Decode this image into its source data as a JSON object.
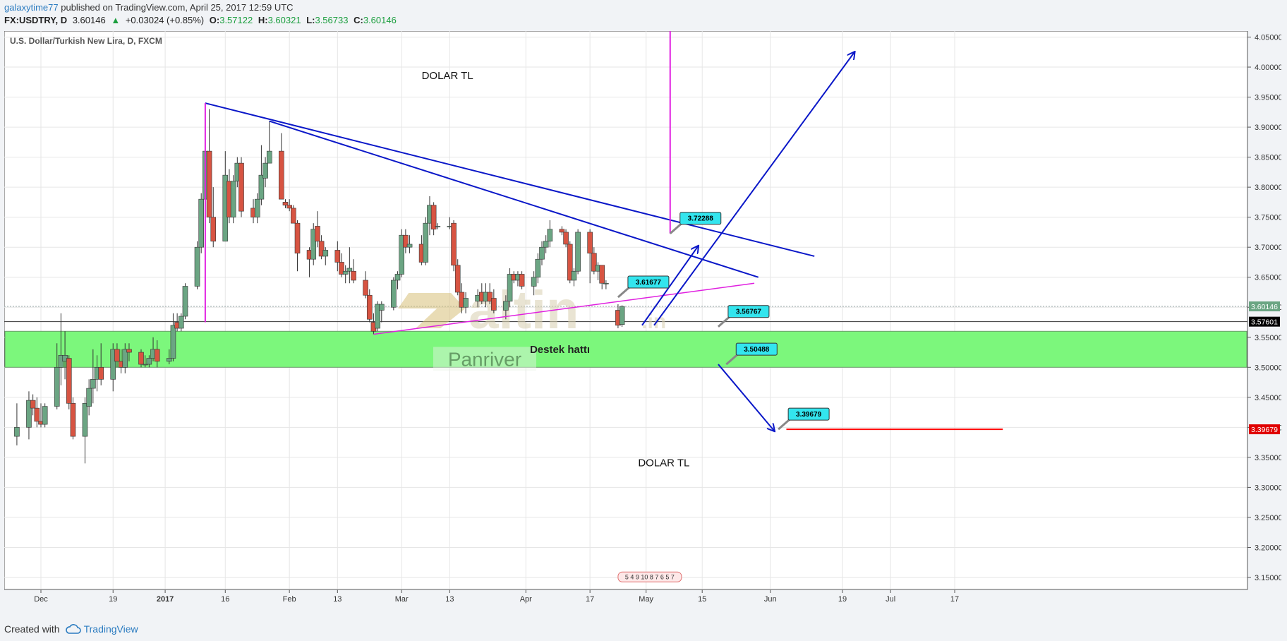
{
  "header": {
    "author": "galaxytime77",
    "published_text": "published on TradingView.com, April 25, 2017 12:59 UTC",
    "symbol": "FX:USDTRY, D",
    "last": "3.60146",
    "change_arrow": "▲",
    "change": "+0.03024 (+0.85%)",
    "open_label": "O:",
    "open": "3.57122",
    "high_label": "H:",
    "high": "3.60321",
    "low_label": "L:",
    "low": "3.56733",
    "close_label": "C:",
    "close": "3.60146"
  },
  "footer": {
    "created_with": "Created with",
    "brand": "TradingView"
  },
  "chart_data": {
    "type": "candlestick",
    "title": "U.S. Dollar/Turkish New Lira, D, FXCM",
    "ylim": [
      3.13,
      4.06
    ],
    "y_ticks": [
      "4.05000",
      "4.00000",
      "3.95000",
      "3.90000",
      "3.85000",
      "3.80000",
      "3.75000",
      "3.70000",
      "3.65000",
      "3.60000",
      "3.55000",
      "3.50000",
      "3.45000",
      "3.40000",
      "3.35000",
      "3.30000",
      "3.25000",
      "3.20000",
      "3.15000"
    ],
    "x_ticks": [
      {
        "label": "Dec",
        "date": "2016-12-01",
        "bold": false
      },
      {
        "label": "19",
        "date": "2016-12-19",
        "bold": false
      },
      {
        "label": "2017",
        "date": "2017-01-01",
        "bold": true
      },
      {
        "label": "16",
        "date": "2017-01-16",
        "bold": false
      },
      {
        "label": "Feb",
        "date": "2017-02-01",
        "bold": false
      },
      {
        "label": "13",
        "date": "2017-02-13",
        "bold": false
      },
      {
        "label": "Mar",
        "date": "2017-03-01",
        "bold": false
      },
      {
        "label": "13",
        "date": "2017-03-13",
        "bold": false
      },
      {
        "label": "Apr",
        "date": "2017-04-01",
        "bold": false
      },
      {
        "label": "17",
        "date": "2017-04-17",
        "bold": false
      },
      {
        "label": "May",
        "date": "2017-05-01",
        "bold": false
      },
      {
        "label": "15",
        "date": "2017-05-15",
        "bold": false
      },
      {
        "label": "Jun",
        "date": "2017-06-01",
        "bold": false
      },
      {
        "label": "19",
        "date": "2017-06-19",
        "bold": false
      },
      {
        "label": "Jul",
        "date": "2017-07-01",
        "bold": false
      },
      {
        "label": "17",
        "date": "2017-07-17",
        "bold": false
      }
    ],
    "price_labels": [
      {
        "value": 3.60146,
        "text": "3.60146",
        "color": "#6ba583"
      },
      {
        "value": 3.57601,
        "text": "3.57601",
        "color": "#000000"
      },
      {
        "value": 3.39679,
        "text": "3.39679",
        "color": "#e00000"
      }
    ],
    "colors": {
      "up": "#6ba583",
      "down": "#d75442",
      "zone": "#7cf77c",
      "trend": "#0a17c8",
      "magenta": "#e020e0",
      "red_line": "#ff0000",
      "callout": "#33e5ee"
    },
    "candles": [
      {
        "d": "2016-11-25",
        "o": 3.385,
        "h": 3.44,
        "l": 3.37,
        "c": 3.4
      },
      {
        "d": "2016-11-28",
        "o": 3.4,
        "h": 3.46,
        "l": 3.38,
        "c": 3.445
      },
      {
        "d": "2016-11-29",
        "o": 3.445,
        "h": 3.455,
        "l": 3.42,
        "c": 3.432
      },
      {
        "d": "2016-11-30",
        "o": 3.432,
        "h": 3.45,
        "l": 3.4,
        "c": 3.41
      },
      {
        "d": "2016-12-01",
        "o": 3.41,
        "h": 3.44,
        "l": 3.4,
        "c": 3.405
      },
      {
        "d": "2016-12-02",
        "o": 3.405,
        "h": 3.44,
        "l": 3.4,
        "c": 3.435
      },
      {
        "d": "2016-12-05",
        "o": 3.435,
        "h": 3.54,
        "l": 3.43,
        "c": 3.5
      },
      {
        "d": "2016-12-06",
        "o": 3.5,
        "h": 3.59,
        "l": 3.47,
        "c": 3.52
      },
      {
        "d": "2016-12-07",
        "o": 3.51,
        "h": 3.56,
        "l": 3.48,
        "c": 3.52
      },
      {
        "d": "2016-12-08",
        "o": 3.515,
        "h": 3.52,
        "l": 3.43,
        "c": 3.44
      },
      {
        "d": "2016-12-09",
        "o": 3.44,
        "h": 3.45,
        "l": 3.38,
        "c": 3.385
      },
      {
        "d": "2016-12-12",
        "o": 3.385,
        "h": 3.45,
        "l": 3.34,
        "c": 3.44
      },
      {
        "d": "2016-12-13",
        "o": 3.435,
        "h": 3.48,
        "l": 3.42,
        "c": 3.465
      },
      {
        "d": "2016-12-14",
        "o": 3.465,
        "h": 3.53,
        "l": 3.44,
        "c": 3.48
      },
      {
        "d": "2016-12-15",
        "o": 3.48,
        "h": 3.52,
        "l": 3.46,
        "c": 3.5
      },
      {
        "d": "2016-12-16",
        "o": 3.5,
        "h": 3.54,
        "l": 3.47,
        "c": 3.48
      },
      {
        "d": "2016-12-19",
        "o": 3.48,
        "h": 3.54,
        "l": 3.46,
        "c": 3.53
      },
      {
        "d": "2016-12-20",
        "o": 3.53,
        "h": 3.54,
        "l": 3.5,
        "c": 3.51
      },
      {
        "d": "2016-12-21",
        "o": 3.51,
        "h": 3.53,
        "l": 3.49,
        "c": 3.5
      },
      {
        "d": "2016-12-22",
        "o": 3.5,
        "h": 3.54,
        "l": 3.49,
        "c": 3.53
      },
      {
        "d": "2016-12-23",
        "o": 3.53,
        "h": 3.54,
        "l": 3.51,
        "c": 3.525
      },
      {
        "d": "2016-12-26",
        "o": 3.525,
        "h": 3.53,
        "l": 3.5,
        "c": 3.505
      },
      {
        "d": "2016-12-27",
        "o": 3.505,
        "h": 3.52,
        "l": 3.5,
        "c": 3.505
      },
      {
        "d": "2016-12-28",
        "o": 3.505,
        "h": 3.52,
        "l": 3.5,
        "c": 3.515
      },
      {
        "d": "2016-12-29",
        "o": 3.515,
        "h": 3.55,
        "l": 3.51,
        "c": 3.53
      },
      {
        "d": "2016-12-30",
        "o": 3.53,
        "h": 3.545,
        "l": 3.5,
        "c": 3.51
      },
      {
        "d": "2017-01-02",
        "o": 3.51,
        "h": 3.53,
        "l": 3.505,
        "c": 3.515
      },
      {
        "d": "2017-01-03",
        "o": 3.515,
        "h": 3.59,
        "l": 3.51,
        "c": 3.57
      },
      {
        "d": "2017-01-04",
        "o": 3.575,
        "h": 3.59,
        "l": 3.56,
        "c": 3.565
      },
      {
        "d": "2017-01-05",
        "o": 3.565,
        "h": 3.59,
        "l": 3.56,
        "c": 3.585
      },
      {
        "d": "2017-01-06",
        "o": 3.585,
        "h": 3.64,
        "l": 3.58,
        "c": 3.635
      },
      {
        "d": "2017-01-09",
        "o": 3.635,
        "h": 3.71,
        "l": 3.63,
        "c": 3.7
      },
      {
        "d": "2017-01-10",
        "o": 3.7,
        "h": 3.79,
        "l": 3.69,
        "c": 3.78
      },
      {
        "d": "2017-01-11",
        "o": 3.78,
        "h": 3.88,
        "l": 3.77,
        "c": 3.86
      },
      {
        "d": "2017-01-12",
        "o": 3.86,
        "h": 3.93,
        "l": 3.74,
        "c": 3.75
      },
      {
        "d": "2017-01-13",
        "o": 3.75,
        "h": 3.8,
        "l": 3.7,
        "c": 3.71
      },
      {
        "d": "2017-01-16",
        "o": 3.71,
        "h": 3.86,
        "l": 3.71,
        "c": 3.82
      },
      {
        "d": "2017-01-17",
        "o": 3.81,
        "h": 3.83,
        "l": 3.74,
        "c": 3.75
      },
      {
        "d": "2017-01-18",
        "o": 3.75,
        "h": 3.82,
        "l": 3.74,
        "c": 3.81
      },
      {
        "d": "2017-01-19",
        "o": 3.81,
        "h": 3.85,
        "l": 3.8,
        "c": 3.84
      },
      {
        "d": "2017-01-20",
        "o": 3.84,
        "h": 3.85,
        "l": 3.75,
        "c": 3.76
      },
      {
        "d": "2017-01-23",
        "o": 3.765,
        "h": 3.78,
        "l": 3.74,
        "c": 3.75
      },
      {
        "d": "2017-01-24",
        "o": 3.75,
        "h": 3.79,
        "l": 3.74,
        "c": 3.78
      },
      {
        "d": "2017-01-25",
        "o": 3.78,
        "h": 3.87,
        "l": 3.77,
        "c": 3.82
      },
      {
        "d": "2017-01-26",
        "o": 3.815,
        "h": 3.85,
        "l": 3.8,
        "c": 3.84
      },
      {
        "d": "2017-01-27",
        "o": 3.84,
        "h": 3.91,
        "l": 3.84,
        "c": 3.86
      },
      {
        "d": "2017-01-30",
        "o": 3.86,
        "h": 3.89,
        "l": 3.78,
        "c": 3.78
      },
      {
        "d": "2017-01-31",
        "o": 3.775,
        "h": 3.78,
        "l": 3.765,
        "c": 3.77
      },
      {
        "d": "2017-02-01",
        "o": 3.77,
        "h": 3.78,
        "l": 3.76,
        "c": 3.765
      },
      {
        "d": "2017-02-02",
        "o": 3.765,
        "h": 3.77,
        "l": 3.74,
        "c": 3.74
      },
      {
        "d": "2017-02-03",
        "o": 3.74,
        "h": 3.745,
        "l": 3.66,
        "c": 3.69
      },
      {
        "d": "2017-02-06",
        "o": 3.695,
        "h": 3.7,
        "l": 3.65,
        "c": 3.68
      },
      {
        "d": "2017-02-07",
        "o": 3.68,
        "h": 3.74,
        "l": 3.67,
        "c": 3.73
      },
      {
        "d": "2017-02-08",
        "o": 3.735,
        "h": 3.76,
        "l": 3.7,
        "c": 3.71
      },
      {
        "d": "2017-02-09",
        "o": 3.71,
        "h": 3.72,
        "l": 3.68,
        "c": 3.685
      },
      {
        "d": "2017-02-10",
        "o": 3.685,
        "h": 3.7,
        "l": 3.67,
        "c": 3.695
      },
      {
        "d": "2017-02-13",
        "o": 3.695,
        "h": 3.71,
        "l": 3.66,
        "c": 3.675
      },
      {
        "d": "2017-02-14",
        "o": 3.675,
        "h": 3.69,
        "l": 3.65,
        "c": 3.655
      },
      {
        "d": "2017-02-15",
        "o": 3.655,
        "h": 3.67,
        "l": 3.64,
        "c": 3.66
      },
      {
        "d": "2017-02-16",
        "o": 3.66,
        "h": 3.7,
        "l": 3.64,
        "c": 3.665
      },
      {
        "d": "2017-02-17",
        "o": 3.66,
        "h": 3.68,
        "l": 3.64,
        "c": 3.645
      },
      {
        "d": "2017-02-20",
        "o": 3.645,
        "h": 3.66,
        "l": 3.615,
        "c": 3.62
      },
      {
        "d": "2017-02-21",
        "o": 3.62,
        "h": 3.63,
        "l": 3.575,
        "c": 3.58
      },
      {
        "d": "2017-02-22",
        "o": 3.575,
        "h": 3.59,
        "l": 3.555,
        "c": 3.56
      },
      {
        "d": "2017-02-23",
        "o": 3.565,
        "h": 3.61,
        "l": 3.56,
        "c": 3.605
      },
      {
        "d": "2017-02-24",
        "o": 3.595,
        "h": 3.61,
        "l": 3.575,
        "c": 3.605
      },
      {
        "d": "2017-02-27",
        "o": 3.6,
        "h": 3.65,
        "l": 3.595,
        "c": 3.645
      },
      {
        "d": "2017-02-28",
        "o": 3.645,
        "h": 3.66,
        "l": 3.63,
        "c": 3.655
      },
      {
        "d": "2017-03-01",
        "o": 3.655,
        "h": 3.73,
        "l": 3.65,
        "c": 3.72
      },
      {
        "d": "2017-03-02",
        "o": 3.72,
        "h": 3.73,
        "l": 3.69,
        "c": 3.7
      },
      {
        "d": "2017-03-03",
        "o": 3.7,
        "h": 3.72,
        "l": 3.69,
        "c": 3.705
      },
      {
        "d": "2017-03-06",
        "o": 3.705,
        "h": 3.72,
        "l": 3.67,
        "c": 3.675
      },
      {
        "d": "2017-03-07",
        "o": 3.675,
        "h": 3.75,
        "l": 3.67,
        "c": 3.74
      },
      {
        "d": "2017-03-08",
        "o": 3.74,
        "h": 3.785,
        "l": 3.72,
        "c": 3.77
      },
      {
        "d": "2017-03-09",
        "o": 3.77,
        "h": 3.775,
        "l": 3.72,
        "c": 3.73
      },
      {
        "d": "2017-03-10",
        "o": 3.735,
        "h": 3.74,
        "l": 3.73,
        "c": 3.735
      },
      {
        "d": "2017-03-13",
        "o": 3.735,
        "h": 3.75,
        "l": 3.73,
        "c": 3.735
      },
      {
        "d": "2017-03-14",
        "o": 3.74,
        "h": 3.745,
        "l": 3.66,
        "c": 3.67
      },
      {
        "d": "2017-03-15",
        "o": 3.67,
        "h": 3.68,
        "l": 3.62,
        "c": 3.625
      },
      {
        "d": "2017-03-16",
        "o": 3.625,
        "h": 3.64,
        "l": 3.59,
        "c": 3.6
      },
      {
        "d": "2017-03-17",
        "o": 3.6,
        "h": 3.625,
        "l": 3.59,
        "c": 3.615
      },
      {
        "d": "2017-03-20",
        "o": 3.61,
        "h": 3.63,
        "l": 3.6,
        "c": 3.62
      },
      {
        "d": "2017-03-21",
        "o": 3.625,
        "h": 3.64,
        "l": 3.605,
        "c": 3.61
      },
      {
        "d": "2017-03-22",
        "o": 3.61,
        "h": 3.64,
        "l": 3.6,
        "c": 3.625
      },
      {
        "d": "2017-03-23",
        "o": 3.625,
        "h": 3.64,
        "l": 3.605,
        "c": 3.61
      },
      {
        "d": "2017-03-24",
        "o": 3.615,
        "h": 3.63,
        "l": 3.59,
        "c": 3.595
      },
      {
        "d": "2017-03-27",
        "o": 3.595,
        "h": 3.62,
        "l": 3.58,
        "c": 3.61
      },
      {
        "d": "2017-03-28",
        "o": 3.61,
        "h": 3.665,
        "l": 3.6,
        "c": 3.655
      },
      {
        "d": "2017-03-29",
        "o": 3.655,
        "h": 3.66,
        "l": 3.64,
        "c": 3.645
      },
      {
        "d": "2017-03-30",
        "o": 3.645,
        "h": 3.66,
        "l": 3.635,
        "c": 3.655
      },
      {
        "d": "2017-03-31",
        "o": 3.655,
        "h": 3.66,
        "l": 3.63,
        "c": 3.635
      },
      {
        "d": "2017-04-03",
        "o": 3.635,
        "h": 3.66,
        "l": 3.62,
        "c": 3.65
      },
      {
        "d": "2017-04-04",
        "o": 3.65,
        "h": 3.69,
        "l": 3.64,
        "c": 3.68
      },
      {
        "d": "2017-04-05",
        "o": 3.68,
        "h": 3.71,
        "l": 3.67,
        "c": 3.7
      },
      {
        "d": "2017-04-06",
        "o": 3.7,
        "h": 3.72,
        "l": 3.69,
        "c": 3.71
      },
      {
        "d": "2017-04-07",
        "o": 3.71,
        "h": 3.745,
        "l": 3.7,
        "c": 3.73
      },
      {
        "d": "2017-04-10",
        "o": 3.73,
        "h": 3.735,
        "l": 3.72,
        "c": 3.725
      },
      {
        "d": "2017-04-11",
        "o": 3.725,
        "h": 3.73,
        "l": 3.7,
        "c": 3.705
      },
      {
        "d": "2017-04-12",
        "o": 3.705,
        "h": 3.71,
        "l": 3.64,
        "c": 3.645
      },
      {
        "d": "2017-04-13",
        "o": 3.645,
        "h": 3.665,
        "l": 3.635,
        "c": 3.66
      },
      {
        "d": "2017-04-14",
        "o": 3.66,
        "h": 3.73,
        "l": 3.655,
        "c": 3.725
      },
      {
        "d": "2017-04-17",
        "o": 3.725,
        "h": 3.73,
        "l": 3.64,
        "c": 3.69
      },
      {
        "d": "2017-04-18",
        "o": 3.69,
        "h": 3.7,
        "l": 3.655,
        "c": 3.66
      },
      {
        "d": "2017-04-19",
        "o": 3.66,
        "h": 3.675,
        "l": 3.645,
        "c": 3.67
      },
      {
        "d": "2017-04-20",
        "o": 3.67,
        "h": 3.67,
        "l": 3.63,
        "c": 3.64
      },
      {
        "d": "2017-04-21",
        "o": 3.64,
        "h": 3.645,
        "l": 3.63,
        "c": 3.64
      },
      {
        "d": "2017-04-24",
        "o": 3.595,
        "h": 3.605,
        "l": 3.565,
        "c": 3.57
      },
      {
        "d": "2017-04-25",
        "o": 3.57122,
        "h": 3.60321,
        "l": 3.56733,
        "c": 3.60146
      }
    ],
    "zone": {
      "from": 3.5,
      "to": 3.56,
      "label": "Destek hattı"
    },
    "callouts": [
      {
        "text": "3.72288",
        "value": 3.72288,
        "d": "2017-05-07"
      },
      {
        "text": "3.61677",
        "value": 3.61677,
        "d": "2017-04-24"
      },
      {
        "text": "3.56767",
        "value": 3.56767,
        "d": "2017-05-19"
      },
      {
        "text": "3.50488",
        "value": 3.50488,
        "d": "2017-05-21"
      },
      {
        "text": "3.39679",
        "value": 3.39679,
        "d": "2017-06-03"
      }
    ],
    "texts": [
      {
        "text": "DOLAR TL",
        "d": "2017-03-06",
        "value": 3.98
      },
      {
        "text": "DOLAR TL",
        "d": "2017-04-29",
        "value": 3.335
      }
    ],
    "watermark": {
      "brand": "altin",
      "domain": ".in",
      "sub": "Panriver"
    },
    "events_label": "5 4 9 10 8 7 6 5 7"
  }
}
